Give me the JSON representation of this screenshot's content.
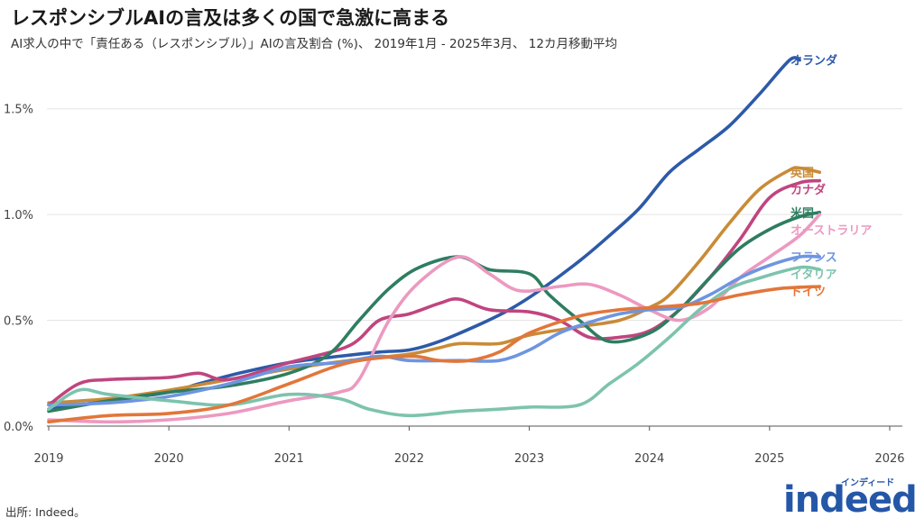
{
  "title": "レスポンシブルAIの言及は多くの国で急激に高まる",
  "subtitle": "AI求人の中で「責任ある（レスポンシブル）」AIの言及割合 (%)、 2019年1月 - 2025年3月、 12カ月移動平均",
  "source": "出所: Indeed。",
  "logo": {
    "word": "indeed",
    "sub": "インディード",
    "color": "#2557a7"
  },
  "chart_data": {
    "type": "line",
    "x_range": [
      "2019-01",
      "2026-03"
    ],
    "x_ticks": [
      "2019",
      "2020",
      "2021",
      "2022",
      "2023",
      "2024",
      "2025",
      "2026"
    ],
    "y_range": [
      0,
      1.75
    ],
    "y_ticks": [
      0,
      0.5,
      1.0,
      1.5
    ],
    "y_tick_labels": [
      "0.0%",
      "0.5%",
      "1.0%",
      "1.5%"
    ],
    "grid": true,
    "legend": "labels at line ends (right)",
    "series": [
      {
        "name": "オランダ",
        "color": "#2d5aa8",
        "points": [
          [
            "2019-01",
            0.08
          ],
          [
            "2019-07",
            0.12
          ],
          [
            "2020-01",
            0.16
          ],
          [
            "2020-04",
            0.2
          ],
          [
            "2020-08",
            0.25
          ],
          [
            "2021-01",
            0.3
          ],
          [
            "2021-06",
            0.33
          ],
          [
            "2021-10",
            0.35
          ],
          [
            "2022-01",
            0.36
          ],
          [
            "2022-04",
            0.4
          ],
          [
            "2022-08",
            0.48
          ],
          [
            "2022-11",
            0.55
          ],
          [
            "2023-02",
            0.64
          ],
          [
            "2023-06",
            0.78
          ],
          [
            "2023-09",
            0.9
          ],
          [
            "2023-12",
            1.03
          ],
          [
            "2024-03",
            1.2
          ],
          [
            "2024-06",
            1.31
          ],
          [
            "2024-09",
            1.42
          ],
          [
            "2024-12",
            1.57
          ],
          [
            "2025-03",
            1.73
          ],
          [
            "2025-04",
            1.73
          ]
        ]
      },
      {
        "name": "英国",
        "color": "#c98b37",
        "points": [
          [
            "2019-01",
            0.11
          ],
          [
            "2019-07",
            0.13
          ],
          [
            "2020-01",
            0.17
          ],
          [
            "2020-07",
            0.22
          ],
          [
            "2021-01",
            0.27
          ],
          [
            "2021-07",
            0.31
          ],
          [
            "2022-01",
            0.34
          ],
          [
            "2022-04",
            0.37
          ],
          [
            "2022-06",
            0.39
          ],
          [
            "2022-10",
            0.39
          ],
          [
            "2023-01",
            0.43
          ],
          [
            "2023-06",
            0.47
          ],
          [
            "2023-10",
            0.5
          ],
          [
            "2024-01",
            0.56
          ],
          [
            "2024-03",
            0.62
          ],
          [
            "2024-06",
            0.78
          ],
          [
            "2024-09",
            0.96
          ],
          [
            "2024-12",
            1.12
          ],
          [
            "2025-03",
            1.21
          ],
          [
            "2025-04",
            1.22
          ],
          [
            "2025-06",
            1.2
          ]
        ]
      },
      {
        "name": "カナダ",
        "color": "#c0457f",
        "points": [
          [
            "2019-01",
            0.1
          ],
          [
            "2019-04",
            0.2
          ],
          [
            "2019-07",
            0.22
          ],
          [
            "2020-01",
            0.23
          ],
          [
            "2020-04",
            0.25
          ],
          [
            "2020-07",
            0.22
          ],
          [
            "2021-01",
            0.3
          ],
          [
            "2021-07",
            0.38
          ],
          [
            "2021-10",
            0.5
          ],
          [
            "2022-01",
            0.53
          ],
          [
            "2022-04",
            0.58
          ],
          [
            "2022-06",
            0.6
          ],
          [
            "2022-09",
            0.55
          ],
          [
            "2023-01",
            0.54
          ],
          [
            "2023-04",
            0.5
          ],
          [
            "2023-07",
            0.42
          ],
          [
            "2023-10",
            0.42
          ],
          [
            "2024-01",
            0.45
          ],
          [
            "2024-04",
            0.55
          ],
          [
            "2024-07",
            0.7
          ],
          [
            "2024-10",
            0.88
          ],
          [
            "2025-01",
            1.08
          ],
          [
            "2025-04",
            1.15
          ],
          [
            "2025-06",
            1.16
          ]
        ]
      },
      {
        "name": "米国",
        "color": "#2e7d60",
        "points": [
          [
            "2019-01",
            0.07
          ],
          [
            "2019-07",
            0.12
          ],
          [
            "2020-01",
            0.16
          ],
          [
            "2020-07",
            0.19
          ],
          [
            "2021-01",
            0.25
          ],
          [
            "2021-05",
            0.34
          ],
          [
            "2021-08",
            0.5
          ],
          [
            "2021-11",
            0.65
          ],
          [
            "2022-02",
            0.75
          ],
          [
            "2022-06",
            0.8
          ],
          [
            "2022-09",
            0.74
          ],
          [
            "2023-01",
            0.72
          ],
          [
            "2023-03",
            0.62
          ],
          [
            "2023-06",
            0.5
          ],
          [
            "2023-09",
            0.4
          ],
          [
            "2024-01",
            0.44
          ],
          [
            "2024-04",
            0.55
          ],
          [
            "2024-07",
            0.7
          ],
          [
            "2024-10",
            0.84
          ],
          [
            "2025-01",
            0.93
          ],
          [
            "2025-04",
            0.99
          ],
          [
            "2025-06",
            1.01
          ]
        ]
      },
      {
        "name": "オーストラリア",
        "color": "#ec99c0",
        "points": [
          [
            "2019-01",
            0.03
          ],
          [
            "2019-07",
            0.02
          ],
          [
            "2020-01",
            0.03
          ],
          [
            "2020-07",
            0.06
          ],
          [
            "2021-01",
            0.12
          ],
          [
            "2021-06",
            0.16
          ],
          [
            "2021-08",
            0.22
          ],
          [
            "2021-11",
            0.5
          ],
          [
            "2022-02",
            0.68
          ],
          [
            "2022-06",
            0.8
          ],
          [
            "2022-09",
            0.72
          ],
          [
            "2022-12",
            0.64
          ],
          [
            "2023-04",
            0.66
          ],
          [
            "2023-07",
            0.67
          ],
          [
            "2023-10",
            0.62
          ],
          [
            "2024-01",
            0.55
          ],
          [
            "2024-04",
            0.5
          ],
          [
            "2024-07",
            0.56
          ],
          [
            "2024-10",
            0.7
          ],
          [
            "2025-01",
            0.8
          ],
          [
            "2025-04",
            0.9
          ],
          [
            "2025-06",
            1.0
          ]
        ]
      },
      {
        "name": "フランス",
        "color": "#6e95e0",
        "points": [
          [
            "2019-01",
            0.1
          ],
          [
            "2019-07",
            0.11
          ],
          [
            "2020-01",
            0.14
          ],
          [
            "2020-07",
            0.2
          ],
          [
            "2021-01",
            0.28
          ],
          [
            "2021-06",
            0.3
          ],
          [
            "2021-10",
            0.33
          ],
          [
            "2022-01",
            0.31
          ],
          [
            "2022-06",
            0.31
          ],
          [
            "2022-10",
            0.31
          ],
          [
            "2023-01",
            0.36
          ],
          [
            "2023-04",
            0.44
          ],
          [
            "2023-07",
            0.49
          ],
          [
            "2023-10",
            0.53
          ],
          [
            "2024-01",
            0.55
          ],
          [
            "2024-04",
            0.56
          ],
          [
            "2024-07",
            0.62
          ],
          [
            "2024-10",
            0.7
          ],
          [
            "2025-01",
            0.76
          ],
          [
            "2025-04",
            0.8
          ],
          [
            "2025-06",
            0.8
          ]
        ]
      },
      {
        "name": "イタリア",
        "color": "#7dc3ad",
        "points": [
          [
            "2019-01",
            0.08
          ],
          [
            "2019-04",
            0.17
          ],
          [
            "2019-07",
            0.15
          ],
          [
            "2020-01",
            0.12
          ],
          [
            "2020-07",
            0.1
          ],
          [
            "2021-01",
            0.15
          ],
          [
            "2021-06",
            0.13
          ],
          [
            "2021-09",
            0.08
          ],
          [
            "2022-01",
            0.05
          ],
          [
            "2022-06",
            0.07
          ],
          [
            "2022-10",
            0.08
          ],
          [
            "2023-01",
            0.09
          ],
          [
            "2023-06",
            0.1
          ],
          [
            "2023-09",
            0.2
          ],
          [
            "2023-12",
            0.3
          ],
          [
            "2024-03",
            0.42
          ],
          [
            "2024-06",
            0.55
          ],
          [
            "2024-09",
            0.65
          ],
          [
            "2024-12",
            0.7
          ],
          [
            "2025-04",
            0.75
          ],
          [
            "2025-06",
            0.74
          ]
        ]
      },
      {
        "name": "ドイツ",
        "color": "#e2763a",
        "points": [
          [
            "2019-01",
            0.02
          ],
          [
            "2019-07",
            0.05
          ],
          [
            "2020-01",
            0.06
          ],
          [
            "2020-07",
            0.1
          ],
          [
            "2021-01",
            0.2
          ],
          [
            "2021-07",
            0.3
          ],
          [
            "2022-01",
            0.33
          ],
          [
            "2022-04",
            0.31
          ],
          [
            "2022-07",
            0.31
          ],
          [
            "2022-10",
            0.35
          ],
          [
            "2023-01",
            0.44
          ],
          [
            "2023-06",
            0.52
          ],
          [
            "2023-10",
            0.55
          ],
          [
            "2024-01",
            0.56
          ],
          [
            "2024-06",
            0.58
          ],
          [
            "2024-10",
            0.62
          ],
          [
            "2025-02",
            0.65
          ],
          [
            "2025-06",
            0.66
          ]
        ]
      }
    ]
  }
}
